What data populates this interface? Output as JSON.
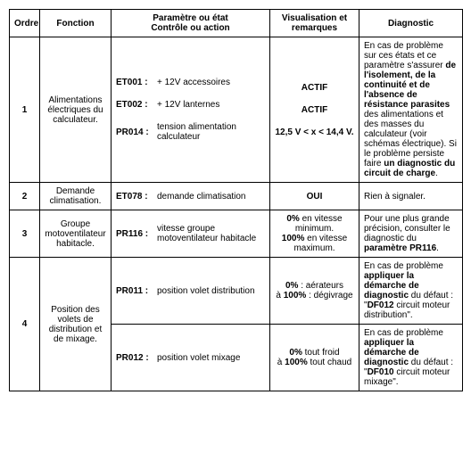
{
  "headers": {
    "ordre": "Ordre",
    "fonction": "Fonction",
    "param": "Paramètre ou état\nContrôle ou action",
    "visu": "Visualisation et remarques",
    "diag": "Diagnostic"
  },
  "rows": [
    {
      "ordre": "1",
      "fonction": "Alimentations électriques du calculateur.",
      "params": [
        {
          "code": "ET001 :",
          "text": "+ 12V accessoires",
          "visu": "ACTIF"
        },
        {
          "code": "ET002 :",
          "text": "+ 12V lanternes",
          "visu": "ACTIF"
        },
        {
          "code": "PR014 :",
          "text": "tension alimentation calculateur",
          "visu": "12,5 V < x < 14,4 V."
        }
      ],
      "diag_parts": [
        {
          "t": "En cas de problème sur ces états et ce paramètre s'assurer ",
          "b": false
        },
        {
          "t": "de l'isolement, de la continuité et de l'absence de résistance parasites",
          "b": true
        },
        {
          "t": " des alimentations et des masses du calculateur (voir schémas électrique). Si le problème persiste faire ",
          "b": false
        },
        {
          "t": "un diagnostic du circuit de charge",
          "b": true
        },
        {
          "t": ".",
          "b": false
        }
      ]
    },
    {
      "ordre": "2",
      "fonction": "Demande climatisation.",
      "params": [
        {
          "code": "ET078 :",
          "text": "demande climatisation",
          "visu": "OUI"
        }
      ],
      "diag_parts": [
        {
          "t": "Rien à signaler.",
          "b": false
        }
      ]
    },
    {
      "ordre": "3",
      "fonction": "Groupe motoventilateur habitacle.",
      "params": [
        {
          "code": "PR116 :",
          "text": "vitesse groupe motoventilateur habitacle"
        }
      ],
      "visu_parts": [
        {
          "t": "0%",
          "b": true
        },
        {
          "t": " en vitesse minimum.",
          "b": false
        },
        {
          "br": true
        },
        {
          "t": "100%",
          "b": true
        },
        {
          "t": " en vitesse maximum.",
          "b": false
        }
      ],
      "diag_parts": [
        {
          "t": "Pour une plus grande précision, consulter le diagnostic du ",
          "b": false
        },
        {
          "t": "paramètre PR116",
          "b": true
        },
        {
          "t": ".",
          "b": false
        }
      ]
    },
    {
      "ordre": "4",
      "fonction": "Position des volets de distribution et de mixage.",
      "sub": [
        {
          "params": [
            {
              "code": "PR011 :",
              "text": "position volet distribution"
            }
          ],
          "visu_parts": [
            {
              "t": "0%",
              "b": true
            },
            {
              "t": " : aérateurs",
              "b": false
            },
            {
              "br": true
            },
            {
              "t": "à ",
              "b": false
            },
            {
              "t": "100%",
              "b": true
            },
            {
              "t": " : dégivrage",
              "b": false
            }
          ],
          "diag_parts": [
            {
              "t": "En cas de problème ",
              "b": false
            },
            {
              "t": "appliquer la démarche de diagnostic",
              "b": true
            },
            {
              "t": " du défaut : \"",
              "b": false
            },
            {
              "t": "DF012",
              "b": true
            },
            {
              "t": " circuit moteur distribution\".",
              "b": false
            }
          ]
        },
        {
          "params": [
            {
              "code": "PR012 :",
              "text": "position volet mixage"
            }
          ],
          "visu_parts": [
            {
              "t": "0%",
              "b": true
            },
            {
              "t": " tout froid",
              "b": false
            },
            {
              "br": true
            },
            {
              "t": "à ",
              "b": false
            },
            {
              "t": "100%",
              "b": true
            },
            {
              "t": " tout chaud",
              "b": false
            }
          ],
          "diag_parts": [
            {
              "t": "En cas de problème ",
              "b": false
            },
            {
              "t": "appliquer la démarche de diagnostic",
              "b": true
            },
            {
              "t": " du défaut : \"",
              "b": false
            },
            {
              "t": "DF010",
              "b": true
            },
            {
              "t": " circuit moteur mixage\".",
              "b": false
            }
          ]
        }
      ]
    }
  ]
}
